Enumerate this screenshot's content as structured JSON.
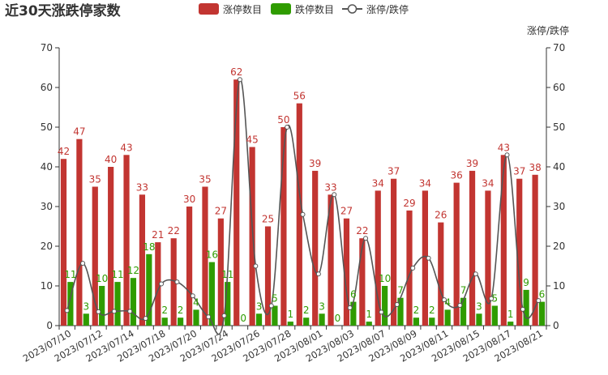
{
  "colors": {
    "up": "#c23531",
    "down": "#2f9c00",
    "ratio": "#555555",
    "axis": "#333333"
  },
  "chart_data": {
    "type": "bar",
    "title": "近30天涨跌停家数",
    "legend": [
      "涨停数目",
      "跌停数目",
      "涨停/跌停"
    ],
    "legend_position": "top-center",
    "y_left": {
      "min": 0,
      "max": 70,
      "ticks": [
        0,
        10,
        20,
        30,
        40,
        50,
        60,
        70
      ]
    },
    "y_right": {
      "name": "涨停/跌停",
      "min": 0,
      "max": 70,
      "ticks": [
        0,
        10,
        20,
        30,
        40,
        50,
        60,
        70
      ]
    },
    "categories": [
      "2023/07/10",
      "2023/07/11",
      "2023/07/12",
      "2023/07/13",
      "2023/07/14",
      "2023/07/17",
      "2023/07/18",
      "2023/07/19",
      "2023/07/20",
      "2023/07/21",
      "2023/07/24",
      "2023/07/25",
      "2023/07/26",
      "2023/07/27",
      "2023/07/28",
      "2023/07/31",
      "2023/08/01",
      "2023/08/02",
      "2023/08/03",
      "2023/08/04",
      "2023/08/07",
      "2023/08/08",
      "2023/08/09",
      "2023/08/10",
      "2023/08/11",
      "2023/08/14",
      "2023/08/15",
      "2023/08/16",
      "2023/08/17",
      "2023/08/18",
      "2023/08/21"
    ],
    "shown_tick_labels": [
      "2023/07/10",
      "2023/07/12",
      "2023/07/14",
      "2023/07/18",
      "2023/07/20",
      "2023/07/24",
      "2023/07/26",
      "2023/07/28",
      "2023/08/01",
      "2023/08/03",
      "2023/08/07",
      "2023/08/09",
      "2023/08/11",
      "2023/08/15",
      "2023/08/17",
      "2023/08/21"
    ],
    "series": [
      {
        "name": "涨停数目",
        "type": "bar",
        "values": [
          42,
          47,
          35,
          40,
          43,
          33,
          21,
          22,
          30,
          35,
          27,
          62,
          45,
          25,
          50,
          56,
          39,
          33,
          27,
          22,
          34,
          37,
          29,
          34,
          26,
          36,
          39,
          34,
          43,
          37,
          38
        ]
      },
      {
        "name": "跌停数目",
        "type": "bar",
        "values": [
          11,
          3,
          10,
          11,
          12,
          18,
          2,
          2,
          4,
          16,
          11,
          0,
          3,
          5,
          1,
          2,
          3,
          0,
          6,
          1,
          10,
          7,
          2,
          2,
          4,
          7,
          3,
          5,
          1,
          9,
          6
        ]
      },
      {
        "name": "涨停/跌停",
        "type": "line",
        "smooth": true,
        "values": [
          3.8,
          15.7,
          3.5,
          3.6,
          3.6,
          1.8,
          10.5,
          11.0,
          7.5,
          2.2,
          2.5,
          62.0,
          15.0,
          5.0,
          50.0,
          28.0,
          13.0,
          33.0,
          4.5,
          22.0,
          3.4,
          5.3,
          14.5,
          17.0,
          6.5,
          5.1,
          13.0,
          6.8,
          43.0,
          4.1,
          6.3
        ]
      }
    ]
  }
}
